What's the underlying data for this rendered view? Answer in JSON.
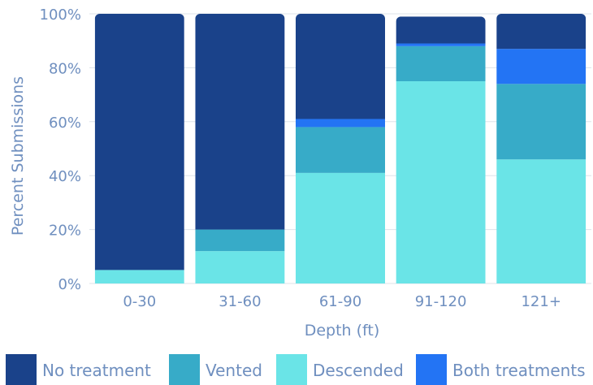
{
  "chart_data": {
    "type": "bar",
    "stacked": true,
    "xlabel": "Depth (ft)",
    "ylabel": "Percent Submissions",
    "ylim": [
      0,
      100
    ],
    "yticks": [
      "0%",
      "20%",
      "40%",
      "60%",
      "80%",
      "100%"
    ],
    "grid": true,
    "legend_position": "bottom",
    "categories": [
      "0-30",
      "31-60",
      "61-90",
      "91-120",
      "121+"
    ],
    "series": [
      {
        "name": "Descended",
        "color": "#6ae4e7",
        "values": [
          5,
          12,
          41,
          75,
          46
        ]
      },
      {
        "name": "Vented",
        "color": "#37abc8",
        "values": [
          0,
          8,
          17,
          13,
          28
        ]
      },
      {
        "name": "Both treatments",
        "color": "#2374f4",
        "values": [
          0,
          0,
          3,
          1,
          13
        ]
      },
      {
        "name": "No treatment",
        "color": "#1a428a",
        "values": [
          95,
          80,
          39,
          10,
          13
        ]
      }
    ],
    "legend_order": [
      "No treatment",
      "Vented",
      "Descended",
      "Both treatments"
    ]
  }
}
